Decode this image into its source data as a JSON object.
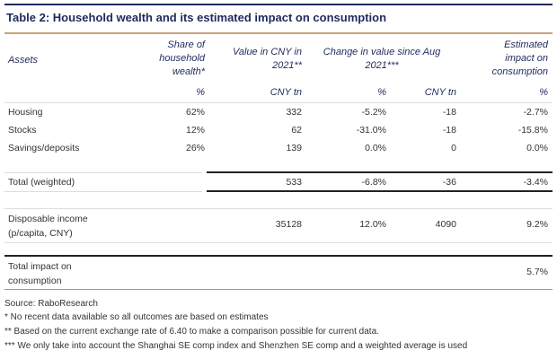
{
  "title": "Table 2: Household wealth and its estimated impact on consumption",
  "headers": {
    "assets": "Assets",
    "share": [
      "Share of",
      "household",
      "wealth*"
    ],
    "value": [
      "Value in CNY in",
      "2021**"
    ],
    "change": [
      "Change in value since Aug",
      "2021***"
    ],
    "impact": [
      "Estimated",
      "impact on",
      "consumption"
    ],
    "units": [
      "%",
      "CNY tn",
      "%",
      "CNY tn",
      "%"
    ]
  },
  "rows": [
    {
      "label": "Housing",
      "share": "62%",
      "value": "332",
      "change_pct": "-5.2%",
      "change_tn": "-18",
      "impact": "-2.7%"
    },
    {
      "label": "Stocks",
      "share": "12%",
      "value": "62",
      "change_pct": "-31.0%",
      "change_tn": "-18",
      "impact": "-15.8%"
    },
    {
      "label": "Savings/deposits",
      "share": "26%",
      "value": "139",
      "change_pct": "0.0%",
      "change_tn": "0",
      "impact": "0.0%"
    }
  ],
  "total": {
    "label": "Total (weighted)",
    "value": "533",
    "change_pct": "-6.8%",
    "change_tn": "-36",
    "impact": "-3.4%"
  },
  "income": {
    "label": [
      "Disposable income",
      "(p/capita, CNY)"
    ],
    "value": "35128",
    "change_pct": "12.0%",
    "change_tn": "4090",
    "impact": "9.2%"
  },
  "total_impact": {
    "label": [
      "Total impact on",
      "consumption"
    ],
    "impact": "5.7%"
  },
  "footnotes": [
    "Source: RaboResearch",
    "* No recent data available so all outcomes are based on estimates",
    "** Based on the current exchange rate of 6.40 to make a comparison possible for current data.",
    "*** We only take into account the Shanghai SE comp index and Shenzhen SE comp and a weighted average is used"
  ]
}
